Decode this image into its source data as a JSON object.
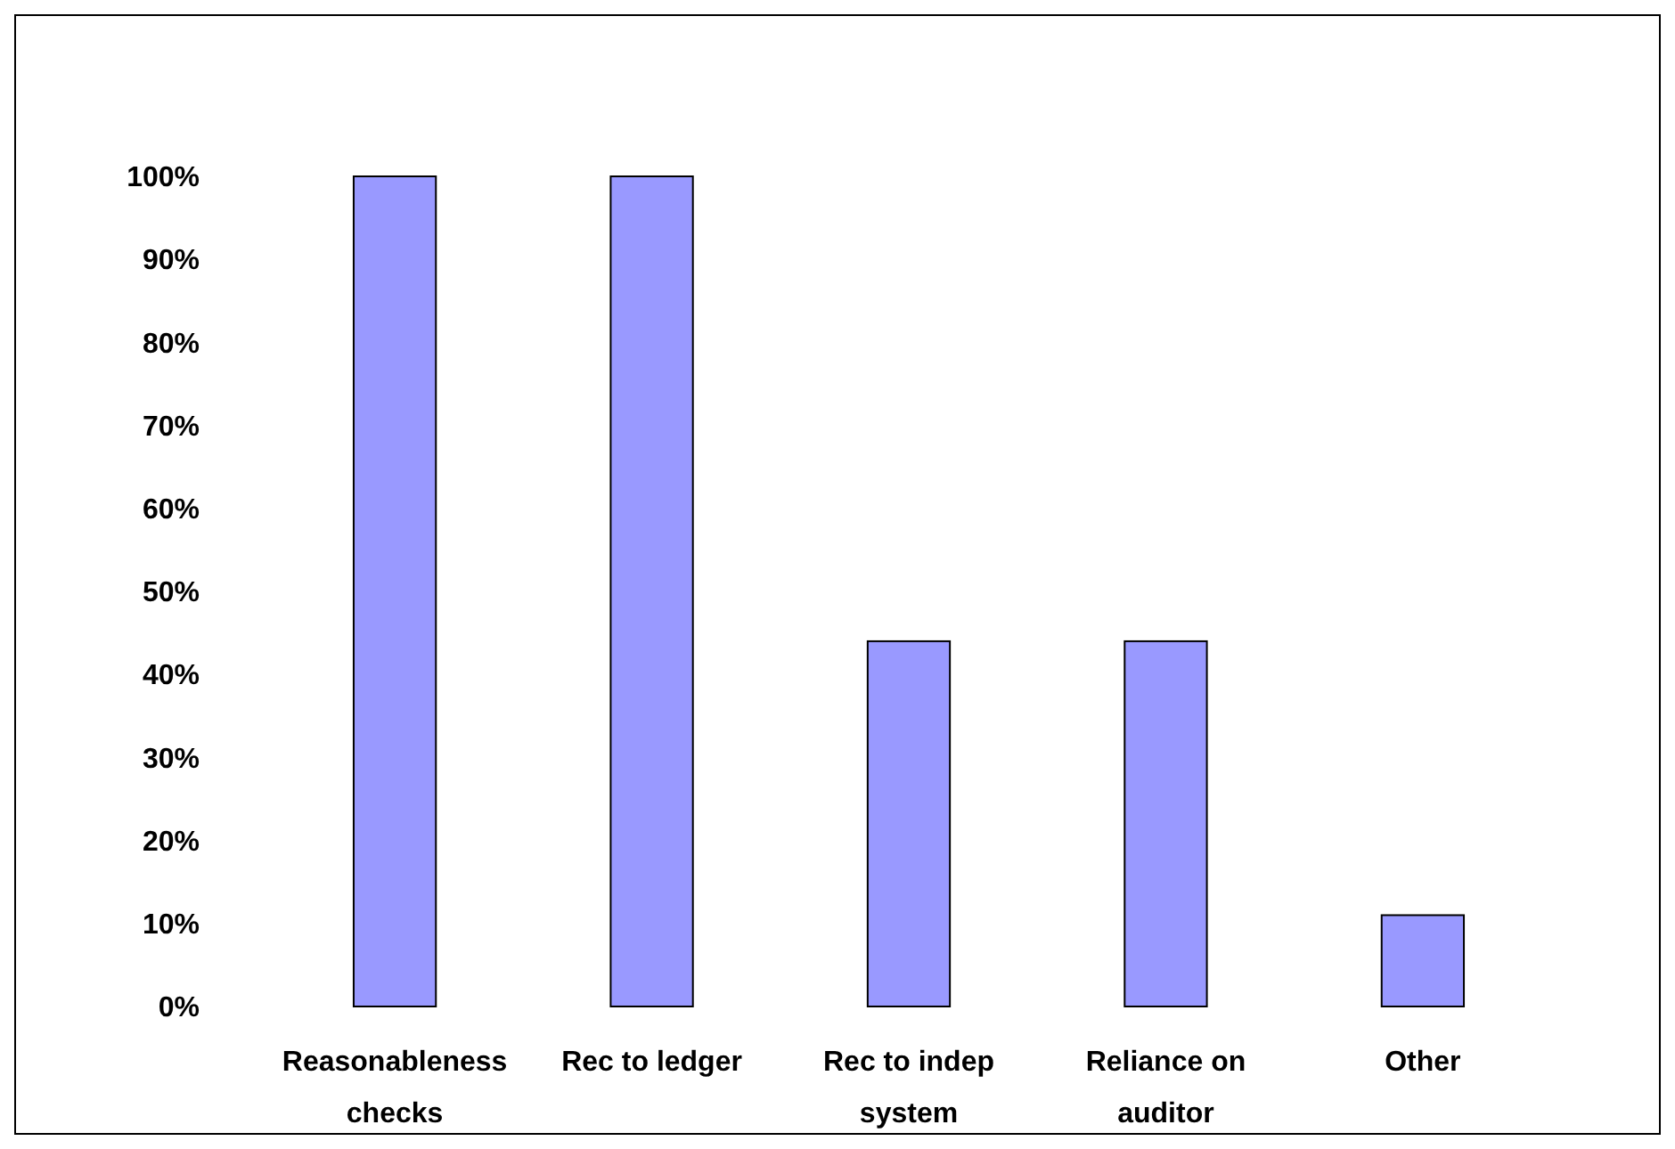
{
  "chart_data": {
    "type": "bar",
    "categories": [
      "Reasonableness checks",
      "Rec to ledger",
      "Rec to indep system",
      "Reliance on auditor",
      "Other"
    ],
    "values": [
      100,
      100,
      44,
      44,
      11
    ],
    "color": "#9999ff",
    "ylim": [
      0,
      100
    ],
    "yticks": [
      {
        "value": 0,
        "label": "0%"
      },
      {
        "value": 10,
        "label": "10%"
      },
      {
        "value": 20,
        "label": "20%"
      },
      {
        "value": 30,
        "label": "30%"
      },
      {
        "value": 40,
        "label": "40%"
      },
      {
        "value": 50,
        "label": "50%"
      },
      {
        "value": 60,
        "label": "60%"
      },
      {
        "value": 70,
        "label": "70%"
      },
      {
        "value": 80,
        "label": "80%"
      },
      {
        "value": 90,
        "label": "90%"
      },
      {
        "value": 100,
        "label": "100%"
      }
    ],
    "grid": false
  }
}
